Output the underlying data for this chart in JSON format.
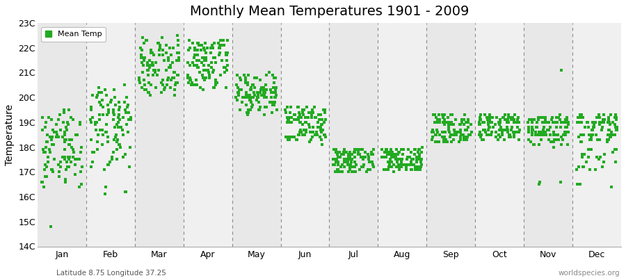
{
  "title": "Monthly Mean Temperatures 1901 - 2009",
  "ylabel": "Temperature",
  "subtitle": "Latitude 8.75 Longitude 37.25",
  "watermark": "worldspecies.org",
  "ylim": [
    14,
    23
  ],
  "yticks": [
    14,
    15,
    16,
    17,
    18,
    19,
    20,
    21,
    22,
    23
  ],
  "ytick_labels": [
    "14C",
    "15C",
    "16C",
    "17C",
    "18C",
    "19C",
    "20C",
    "21C",
    "22C",
    "23C"
  ],
  "months": [
    "Jan",
    "Feb",
    "Mar",
    "Apr",
    "May",
    "Jun",
    "Jul",
    "Aug",
    "Sep",
    "Oct",
    "Nov",
    "Dec"
  ],
  "dot_color": "#22aa22",
  "bg_color_odd": "#e8e8e8",
  "bg_color_even": "#f0f0f0",
  "legend_label": "Mean Temp",
  "title_fontsize": 14,
  "monthly_mean_temps": {
    "Jan": [
      19.4,
      19.2,
      18.8,
      19.5,
      19.1,
      17.2,
      16.8,
      17.5,
      17.0,
      18.5,
      17.8,
      19.0,
      18.2,
      17.5,
      17.1,
      18.8,
      19.2,
      17.5,
      19.1,
      18.5,
      18.0,
      17.8,
      17.2,
      17.6,
      18.0,
      19.0,
      18.5,
      18.9,
      18.4,
      17.3,
      18.1,
      17.9,
      19.3,
      18.6,
      16.6,
      17.4,
      18.3,
      18.7,
      19.0,
      17.6,
      18.4,
      17.0,
      18.1,
      16.4,
      17.2,
      19.5,
      17.8,
      18.2,
      18.6,
      18.9,
      17.5,
      17.0,
      17.2,
      16.8,
      18.4,
      17.6,
      18.9,
      19.1,
      18.7,
      18.3,
      17.4,
      18.0,
      17.6,
      18.2,
      17.9,
      18.6,
      16.9,
      17.3,
      18.5,
      17.8,
      18.0,
      17.4,
      16.5,
      17.1,
      18.3,
      17.9,
      18.7,
      17.2,
      18.1,
      19.0,
      17.5,
      18.4,
      17.8,
      18.3,
      18.5,
      17.1,
      17.6,
      18.8,
      17.9,
      16.4,
      18.6,
      18.1,
      16.8,
      17.4,
      17.0,
      19.2,
      16.6,
      18.7,
      17.3,
      16.6,
      17.5,
      18.4,
      18.0,
      17.8,
      17.1,
      18.3,
      16.7,
      17.6,
      14.8
    ],
    "Feb": [
      19.1,
      19.5,
      20.5,
      19.8,
      19.9,
      19.2,
      20.1,
      16.2,
      18.3,
      19.4,
      18.8,
      19.1,
      19.8,
      17.2,
      18.5,
      19.3,
      20.0,
      19.6,
      18.1,
      17.9,
      20.2,
      19.7,
      18.4,
      19.0,
      18.7,
      19.5,
      20.3,
      19.1,
      18.9,
      17.5,
      18.2,
      19.4,
      16.1,
      19.7,
      20.0,
      18.5,
      19.3,
      17.8,
      19.6,
      18.1,
      19.2,
      18.7,
      16.2,
      19.0,
      18.4,
      18.9,
      19.8,
      17.6,
      19.4,
      18.6,
      20.1,
      19.2,
      17.3,
      18.8,
      19.5,
      18.0,
      17.7,
      19.1,
      20.3,
      19.6,
      18.2,
      19.9,
      17.4,
      18.5,
      19.0,
      18.7,
      19.3,
      17.1,
      18.6,
      19.5,
      18.3,
      20.0,
      18.4,
      17.8,
      19.1,
      19.7,
      18.8,
      17.5,
      19.3,
      18.1,
      19.6,
      18.9,
      20.2,
      17.9,
      19.4,
      18.0,
      17.4,
      19.8,
      18.7,
      19.2,
      17.3,
      18.5,
      19.0,
      18.6,
      20.1,
      19.5,
      17.8,
      18.3,
      19.4,
      17.6,
      18.9,
      19.1,
      20.4,
      18.2,
      19.7,
      17.2,
      18.8,
      19.3,
      16.4
    ],
    "Mar": [
      20.5,
      20.8,
      21.5,
      20.3,
      21.2,
      20.7,
      22.3,
      21.8,
      20.5,
      21.1,
      20.9,
      21.6,
      20.2,
      21.3,
      22.0,
      20.6,
      21.4,
      20.4,
      21.7,
      22.2,
      20.1,
      21.9,
      20.8,
      21.3,
      22.1,
      21.5,
      20.7,
      21.0,
      22.4,
      20.3,
      21.6,
      21.1,
      20.9,
      21.8,
      22.0,
      21.2,
      20.5,
      21.4,
      20.6,
      21.7,
      22.3,
      21.9,
      20.2,
      21.0,
      20.8,
      21.5,
      22.1,
      20.4,
      21.3,
      20.7,
      21.6,
      22.2,
      21.8,
      20.1,
      21.4,
      20.9,
      21.1,
      22.5,
      20.6,
      21.7,
      20.3,
      21.0,
      21.8,
      22.0,
      21.5,
      20.8,
      21.3,
      20.5,
      21.6,
      22.2,
      21.9,
      20.4,
      21.1,
      20.7,
      21.4,
      22.3,
      21.7,
      20.2,
      21.0,
      20.8,
      21.5,
      22.1,
      20.6,
      21.3,
      21.8,
      20.4,
      21.1,
      20.9,
      21.6,
      22.0,
      21.5,
      20.7,
      21.2,
      20.3,
      21.9,
      22.4,
      21.8,
      20.6,
      21.4,
      20.2,
      21.0,
      20.8,
      21.5,
      22.2,
      21.7,
      20.5,
      21.3,
      20.9,
      21.1
    ],
    "Apr": [
      20.5,
      21.5,
      20.8,
      21.9,
      22.1,
      21.3,
      20.6,
      21.7,
      22.0,
      21.2,
      20.9,
      21.4,
      22.2,
      21.6,
      20.5,
      21.1,
      22.3,
      21.8,
      20.7,
      21.3,
      21.0,
      22.0,
      21.5,
      20.4,
      21.9,
      22.2,
      21.1,
      20.8,
      21.6,
      22.1,
      21.4,
      20.3,
      21.7,
      22.0,
      21.2,
      20.9,
      21.5,
      22.3,
      21.8,
      20.6,
      21.1,
      22.1,
      21.4,
      20.7,
      21.9,
      22.2,
      21.6,
      20.5,
      21.3,
      22.0,
      21.7,
      20.8,
      21.2,
      22.1,
      21.5,
      20.4,
      21.8,
      22.3,
      21.0,
      20.9,
      21.6,
      22.0,
      21.3,
      20.7,
      21.9,
      22.2,
      21.5,
      20.6,
      21.1,
      22.1,
      21.4,
      20.8,
      21.7,
      22.0,
      21.2,
      20.5,
      21.8,
      22.3,
      21.6,
      20.4,
      21.3,
      22.1,
      21.9,
      20.9,
      21.5,
      22.0,
      21.7,
      20.7,
      21.2,
      22.2,
      21.4,
      20.6,
      21.0,
      21.8,
      22.3,
      21.6,
      20.5,
      21.1,
      22.0,
      21.3,
      20.8,
      21.7,
      22.1,
      21.5,
      20.4,
      21.9,
      22.2,
      21.0,
      20.7
    ],
    "May": [
      19.5,
      20.1,
      20.0,
      20.5,
      20.3,
      19.8,
      20.8,
      20.2,
      20.6,
      19.9,
      21.0,
      20.4,
      20.3,
      19.7,
      20.9,
      20.1,
      20.2,
      19.5,
      20.0,
      20.7,
      19.3,
      20.2,
      20.5,
      19.8,
      20.0,
      20.3,
      20.4,
      19.6,
      20.8,
      20.0,
      20.1,
      19.4,
      20.3,
      20.6,
      19.9,
      20.0,
      20.4,
      20.2,
      19.7,
      20.9,
      20.0,
      20.2,
      19.5,
      20.8,
      20.1,
      20.5,
      19.8,
      20.0,
      20.3,
      20.3,
      19.6,
      20.9,
      20.0,
      20.1,
      19.4,
      20.7,
      20.2,
      20.5,
      19.8,
      20.0,
      20.4,
      19.7,
      20.1,
      20.8,
      19.5,
      20.0,
      20.2,
      20.3,
      19.9,
      20.6,
      20.0,
      20.4,
      19.7,
      20.2,
      20.8,
      19.5,
      20.0,
      20.3,
      20.4,
      19.6,
      20.9,
      20.1,
      20.2,
      19.4,
      20.0,
      20.6,
      19.9,
      20.2,
      20.5,
      19.8,
      20.0,
      20.4,
      20.3,
      19.7,
      20.9,
      20.0,
      20.1,
      19.3,
      20.0,
      20.7,
      19.5,
      20.1,
      20.4,
      19.8,
      20.0,
      20.3,
      20.2,
      19.6,
      20.8
    ],
    "Jun": [
      19.5,
      19.4,
      18.8,
      19.0,
      19.6,
      18.5,
      19.2,
      19.5,
      18.7,
      19.4,
      18.3,
      19.1,
      19.2,
      18.6,
      19.3,
      18.2,
      19.0,
      19.5,
      18.4,
      19.2,
      18.1,
      19.6,
      18.9,
      19.3,
      18.5,
      19.1,
      19.4,
      18.4,
      19.0,
      19.5,
      18.3,
      19.2,
      18.7,
      19.4,
      18.6,
      19.0,
      19.2,
      18.5,
      19.1,
      18.8,
      19.3,
      18.4,
      19.0,
      19.6,
      18.3,
      19.2,
      18.9,
      19.5,
      18.6,
      19.1,
      18.4,
      19.4,
      18.7,
      19.3,
      18.5,
      19.0,
      19.6,
      18.4,
      19.2,
      18.8,
      19.5,
      18.3,
      19.1,
      19.2,
      18.6,
      19.3,
      18.5,
      19.0,
      19.4,
      18.4,
      19.2,
      18.9,
      19.4,
      18.7,
      19.1,
      18.5,
      19.6,
      18.3,
      19.0,
      19.5,
      18.8,
      19.2,
      18.6,
      19.1,
      19.2,
      18.4,
      19.3,
      18.9,
      19.0,
      18.6,
      19.5,
      18.3,
      19.2,
      19.4,
      18.5,
      19.1,
      18.7,
      19.4,
      18.6,
      19.0,
      19.6,
      18.4,
      19.3,
      18.8,
      19.1,
      18.5,
      19.2,
      18.4,
      19.0
    ],
    "Jul": [
      17.5,
      17.8,
      17.2,
      17.6,
      17.0,
      17.9,
      17.3,
      17.7,
      17.1,
      17.5,
      17.8,
      17.2,
      17.6,
      17.4,
      17.9,
      17.1,
      17.6,
      17.3,
      17.8,
      17.5,
      17.0,
      17.7,
      17.2,
      17.9,
      17.4,
      17.1,
      17.6,
      17.8,
      17.3,
      17.5,
      17.0,
      17.7,
      17.2,
      17.9,
      17.4,
      17.1,
      17.6,
      17.3,
      17.8,
      17.5,
      17.0,
      17.7,
      17.2,
      17.9,
      17.4,
      17.1,
      17.6,
      17.3,
      17.8,
      17.5,
      17.0,
      17.7,
      17.2,
      17.9,
      17.4,
      17.1,
      17.6,
      17.3,
      17.8,
      17.5,
      17.0,
      17.7,
      17.2,
      17.9,
      17.4,
      17.6,
      17.3,
      17.8,
      17.5,
      17.1,
      17.7,
      17.4,
      17.9,
      17.2,
      17.6,
      17.3,
      17.8,
      17.5,
      17.0,
      17.7,
      17.2,
      17.9,
      17.4,
      17.6,
      17.3,
      17.8,
      17.0,
      17.7,
      17.5,
      17.2,
      17.9,
      17.4,
      17.1,
      17.6,
      17.3,
      17.8,
      17.5,
      17.0,
      17.7,
      17.2,
      17.9,
      17.4,
      17.6,
      17.3,
      17.8,
      17.5,
      17.1,
      17.7,
      17.4
    ],
    "Aug": [
      17.5,
      17.8,
      17.2,
      18.0,
      17.5,
      17.3,
      17.9,
      17.6,
      17.2,
      17.8,
      17.4,
      17.7,
      17.0,
      17.5,
      17.9,
      17.3,
      17.6,
      17.1,
      17.8,
      17.5,
      17.2,
      17.9,
      17.4,
      17.7,
      17.1,
      17.5,
      17.8,
      17.3,
      17.6,
      17.2,
      17.9,
      17.5,
      17.1,
      17.7,
      17.4,
      17.8,
      17.2,
      17.6,
      17.9,
      17.3,
      17.5,
      17.1,
      17.8,
      17.4,
      17.7,
      17.2,
      17.5,
      17.9,
      17.3,
      17.6,
      17.1,
      17.8,
      17.4,
      17.7,
      17.2,
      17.5,
      17.9,
      17.3,
      17.6,
      17.1,
      17.8,
      17.5,
      17.2,
      17.9,
      17.4,
      17.7,
      17.1,
      17.5,
      17.8,
      17.3,
      17.6,
      17.2,
      17.9,
      17.5,
      17.1,
      17.7,
      17.4,
      17.8,
      17.2,
      17.6,
      17.9,
      17.3,
      17.5,
      17.1,
      17.8,
      17.4,
      17.7,
      17.2,
      17.5,
      17.9,
      17.3,
      17.6,
      17.1,
      17.8,
      17.4,
      17.7,
      17.2,
      17.5,
      17.9,
      17.3,
      17.6,
      17.1,
      17.8,
      17.4,
      17.7,
      17.2,
      17.5,
      17.9,
      17.3
    ],
    "Sep": [
      18.5,
      19.0,
      18.3,
      18.8,
      19.2,
      18.6,
      19.0,
      18.4,
      18.9,
      19.3,
      18.7,
      19.1,
      18.5,
      18.2,
      19.0,
      18.6,
      19.2,
      18.4,
      18.9,
      19.3,
      18.7,
      18.3,
      19.1,
      18.5,
      19.0,
      18.6,
      18.2,
      19.0,
      18.4,
      18.9,
      19.3,
      18.7,
      18.3,
      19.1,
      18.5,
      19.0,
      18.6,
      18.2,
      19.0,
      18.4,
      18.9,
      19.3,
      18.7,
      18.5,
      18.3,
      19.1,
      18.5,
      19.0,
      18.6,
      18.2,
      19.0,
      18.4,
      18.9,
      19.3,
      18.7,
      18.3,
      19.1,
      18.5,
      19.0,
      18.6,
      18.2,
      19.0,
      18.4,
      18.9,
      19.3,
      18.7,
      18.3,
      19.1,
      18.5,
      19.0,
      18.6,
      18.2,
      19.0,
      18.4,
      18.9,
      19.3,
      18.7,
      18.3,
      19.1,
      18.5,
      19.0,
      18.6,
      18.2,
      18.4,
      18.9,
      19.3,
      18.7,
      18.3,
      19.1,
      18.5,
      19.0,
      18.6,
      18.2,
      19.0,
      18.4,
      18.9,
      19.3,
      18.7,
      18.3,
      19.1,
      18.5,
      19.0,
      18.6,
      18.2,
      18.9,
      18.4,
      19.2,
      18.6,
      18.8
    ],
    "Oct": [
      18.8,
      19.2,
      18.5,
      19.0,
      18.7,
      19.3,
      18.6,
      19.1,
      18.4,
      18.9,
      19.2,
      18.7,
      19.0,
      18.5,
      18.3,
      19.1,
      18.6,
      19.0,
      18.8,
      19.2,
      18.5,
      19.0,
      18.7,
      19.3,
      18.6,
      19.1,
      18.4,
      18.9,
      19.2,
      18.7,
      19.0,
      18.5,
      18.3,
      19.1,
      18.6,
      19.0,
      18.8,
      19.2,
      18.5,
      19.0,
      18.7,
      19.3,
      18.6,
      19.1,
      18.4,
      18.9,
      19.2,
      18.7,
      19.0,
      18.5,
      18.3,
      19.1,
      18.6,
      19.0,
      18.8,
      19.2,
      18.5,
      19.0,
      18.7,
      19.3,
      18.6,
      19.1,
      18.4,
      18.9,
      19.2,
      18.7,
      19.0,
      18.5,
      18.3,
      19.1,
      18.6,
      19.0,
      18.8,
      19.2,
      18.5,
      19.0,
      18.7,
      19.3,
      18.6,
      19.1,
      18.4,
      18.9,
      19.2,
      18.7,
      19.0,
      18.5,
      18.3,
      19.1,
      18.6,
      19.0,
      18.8,
      19.2,
      18.5,
      19.0,
      18.7,
      19.3,
      18.6,
      19.1,
      18.4,
      18.9,
      19.2,
      18.7,
      19.0,
      18.5,
      18.3,
      19.1,
      18.6,
      19.0,
      18.8
    ],
    "Nov": [
      18.5,
      19.1,
      18.3,
      19.0,
      18.7,
      19.2,
      18.6,
      18.1,
      19.0,
      18.5,
      16.6,
      18.8,
      19.1,
      18.4,
      18.9,
      19.3,
      18.7,
      18.2,
      19.0,
      18.5,
      18.8,
      19.2,
      18.6,
      18.1,
      19.0,
      18.5,
      18.3,
      19.1,
      18.6,
      19.0,
      18.8,
      18.3,
      19.1,
      18.5,
      18.0,
      19.0,
      18.6,
      19.2,
      18.7,
      18.2,
      19.0,
      18.5,
      18.8,
      19.2,
      18.6,
      18.1,
      19.0,
      18.5,
      18.3,
      19.1,
      18.6,
      19.0,
      18.8,
      18.3,
      19.1,
      18.5,
      16.5,
      19.0,
      18.6,
      19.2,
      18.7,
      18.2,
      19.0,
      18.5,
      18.8,
      19.2,
      18.6,
      18.1,
      19.0,
      18.5,
      18.3,
      19.1,
      18.6,
      19.0,
      18.8,
      18.3,
      19.1,
      18.5,
      16.6,
      19.0,
      18.6,
      19.2,
      18.7,
      18.2,
      19.0,
      18.5,
      18.8,
      19.2,
      18.6,
      18.1,
      19.0,
      18.5,
      18.3,
      19.1,
      18.6,
      19.0,
      18.8,
      18.3,
      19.1,
      18.5,
      21.1,
      19.0,
      18.6,
      19.2,
      18.7,
      18.2,
      19.0,
      18.5,
      18.8
    ],
    "Dec": [
      19.0,
      18.5,
      19.2,
      17.8,
      18.6,
      19.1,
      18.3,
      17.5,
      18.9,
      19.3,
      18.7,
      16.5,
      18.4,
      19.0,
      17.2,
      18.8,
      19.2,
      18.5,
      17.6,
      19.0,
      18.3,
      19.1,
      17.9,
      18.7,
      19.3,
      18.5,
      17.4,
      19.0,
      18.2,
      18.8,
      19.2,
      17.7,
      18.5,
      19.0,
      18.3,
      17.1,
      18.9,
      19.3,
      18.7,
      16.5,
      18.4,
      19.0,
      17.2,
      18.8,
      19.2,
      18.5,
      17.6,
      19.0,
      18.3,
      19.1,
      17.9,
      18.7,
      19.3,
      18.5,
      17.4,
      19.0,
      18.2,
      18.8,
      19.2,
      17.7,
      18.5,
      19.0,
      18.3,
      17.1,
      18.9,
      19.3,
      18.7,
      16.4,
      18.4,
      19.0,
      17.2,
      18.8,
      19.2,
      18.5,
      17.6,
      19.0,
      18.3,
      19.1,
      17.9,
      18.7,
      19.3,
      18.5,
      17.4,
      19.0,
      18.2,
      18.8,
      19.2,
      17.7,
      18.5,
      19.0,
      18.3,
      17.1,
      18.9,
      19.3,
      18.7,
      16.5,
      18.4,
      19.0,
      17.2,
      18.8,
      19.2,
      18.5,
      17.6,
      19.0,
      18.3,
      19.1,
      17.9,
      18.7,
      19.3
    ]
  }
}
